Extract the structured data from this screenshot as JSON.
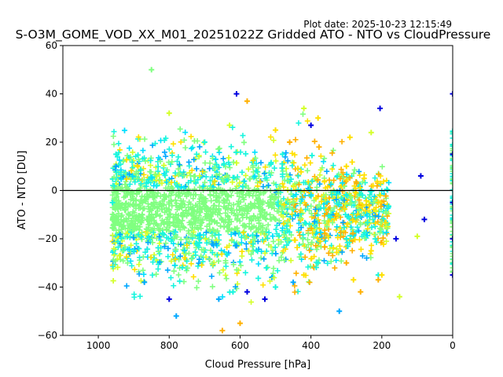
{
  "plot_date": "Plot date: 2025-10-23 12:15:49",
  "chart_data": {
    "type": "scatter",
    "title": "S-O3M_GOME_VOD_XX_M01_20251022Z Gridded ATO - NTO vs CloudPressure",
    "xlabel": "Cloud Pressure [hPa]",
    "ylabel": "ATO - NTO [DU]",
    "xlim": [
      1100,
      0
    ],
    "ylim": [
      -60,
      60
    ],
    "x_axis_inverted": true,
    "x_ticks": [
      1000,
      800,
      600,
      400,
      200,
      0
    ],
    "y_ticks": [
      -60,
      -40,
      -20,
      0,
      20,
      40,
      60
    ],
    "x_tick_labels": [
      "1000",
      "800",
      "600",
      "400",
      "200",
      "0"
    ],
    "y_tick_labels": [
      "−60",
      "−40",
      "−20",
      "0",
      "20",
      "40",
      "60"
    ],
    "reference_line_y": 0,
    "grid": false,
    "legend": "none",
    "marker": "+",
    "colors": [
      "#0000e0",
      "#00a8ff",
      "#19f5de",
      "#80ff80",
      "#d4ff2a",
      "#ffe000",
      "#ffb000"
    ],
    "series": [
      {
        "color": "#80ff80",
        "points": [
          [
            850,
            50
          ],
          [
            700,
            -5
          ],
          [
            600,
            -8
          ],
          [
            800,
            -10
          ],
          [
            500,
            -12
          ],
          [
            650,
            5
          ],
          [
            750,
            -20
          ],
          [
            550,
            0
          ],
          [
            900,
            -15
          ],
          [
            450,
            -5
          ]
        ]
      },
      {
        "color": "#19f5de",
        "points": [
          [
            950,
            15
          ],
          [
            900,
            -25
          ],
          [
            700,
            20
          ],
          [
            500,
            -40
          ],
          [
            480,
            15
          ],
          [
            300,
            -20
          ],
          [
            210,
            -35
          ],
          [
            960,
            -5
          ],
          [
            620,
            -42
          ],
          [
            380,
            -30
          ]
        ]
      },
      {
        "color": "#ffe000",
        "points": [
          [
            500,
            25
          ],
          [
            380,
            30
          ],
          [
            290,
            22
          ],
          [
            280,
            -37
          ],
          [
            200,
            -35
          ],
          [
            230,
            -25
          ],
          [
            210,
            -5
          ],
          [
            300,
            10
          ],
          [
            250,
            5
          ],
          [
            420,
            -35
          ]
        ]
      },
      {
        "color": "#ffb000",
        "points": [
          [
            580,
            37
          ],
          [
            650,
            -58
          ],
          [
            600,
            -55
          ],
          [
            210,
            -37
          ],
          [
            460,
            20
          ],
          [
            260,
            -42
          ],
          [
            300,
            -30
          ]
        ]
      },
      {
        "color": "#0000e0",
        "points": [
          [
            610,
            40
          ],
          [
            580,
            -42
          ],
          [
            800,
            -45
          ],
          [
            530,
            -45
          ],
          [
            205,
            34
          ],
          [
            400,
            27
          ],
          [
            0,
            40
          ],
          [
            0,
            15
          ],
          [
            0,
            -5
          ],
          [
            0,
            -20
          ],
          [
            0,
            -35
          ],
          [
            80,
            -12
          ],
          [
            160,
            -20
          ],
          [
            90,
            6
          ]
        ]
      },
      {
        "color": "#00a8ff",
        "points": [
          [
            320,
            -50
          ],
          [
            780,
            -52
          ],
          [
            660,
            -45
          ],
          [
            950,
            10
          ],
          [
            870,
            -38
          ],
          [
            450,
            -38
          ]
        ]
      },
      {
        "color": "#d4ff2a",
        "points": [
          [
            420,
            34
          ],
          [
            800,
            32
          ],
          [
            230,
            24
          ],
          [
            100,
            -19
          ],
          [
            150,
            -44
          ]
        ]
      }
    ]
  }
}
